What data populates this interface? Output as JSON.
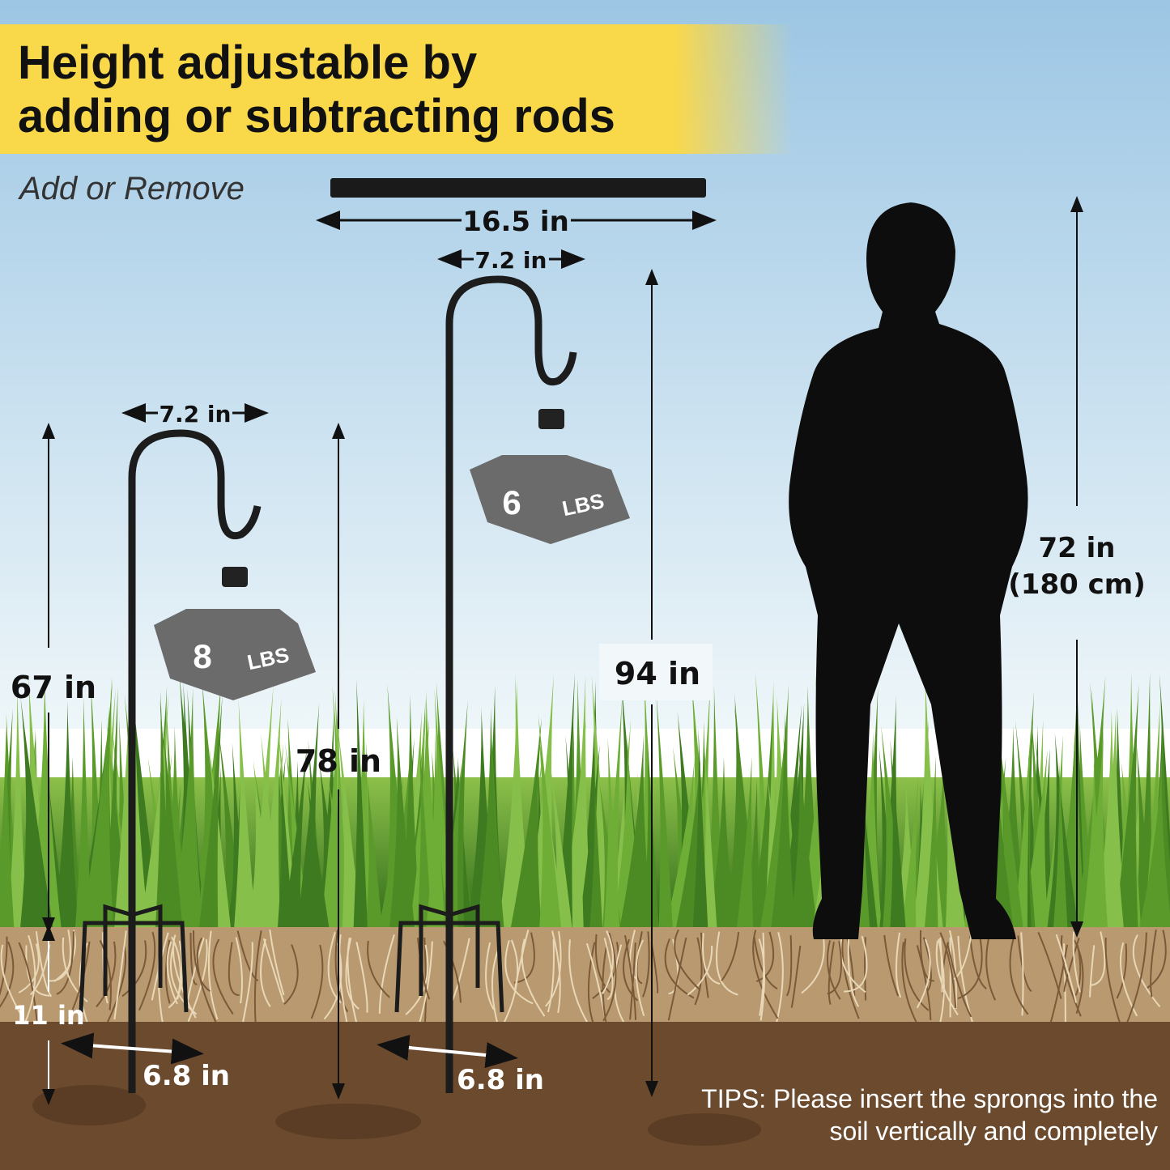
{
  "title": {
    "line1": "Height adjustable by",
    "line2": "adding or subtracting rods"
  },
  "subtitle": "Add or Remove",
  "rod": {
    "length": "16.5 in"
  },
  "short_hook": {
    "width": "7.2 in",
    "height": "67 in",
    "total_height": "78 in",
    "prong_depth": "11 in",
    "prong_width": "6.8 in",
    "weight_value": "8",
    "weight_unit": "LBS"
  },
  "tall_hook": {
    "width": "7.2 in",
    "height": "94 in",
    "prong_width": "6.8 in",
    "weight_value": "6",
    "weight_unit": "LBS"
  },
  "person": {
    "height_in": "72 in",
    "height_cm": "(180 cm)"
  },
  "tips": {
    "line1": "TIPS: Please insert the sprongs into the",
    "line2": "soil vertically and completely"
  },
  "colors": {
    "banner": "#f9d84a",
    "grass": "#5a9a2a",
    "soil": "#6b4a2e",
    "roots": "#b99a70",
    "weight": "#6b6b6b"
  }
}
